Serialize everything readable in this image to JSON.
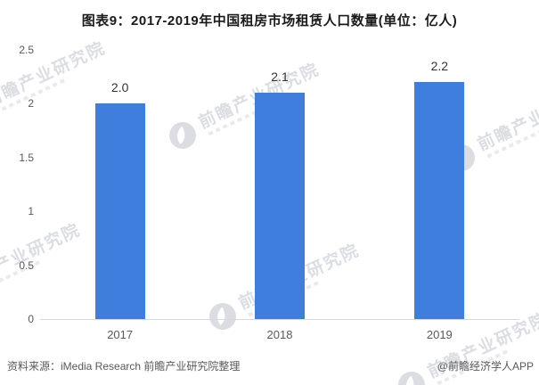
{
  "title": "图表9：2017-2019年中国租房市场租赁人口数量(单位：亿人)",
  "chart_data": {
    "type": "bar",
    "title": "图表9：2017-2019年中国租房市场租赁人口数量",
    "unit": "亿人",
    "categories": [
      "2017",
      "2018",
      "2019"
    ],
    "values": [
      2.0,
      2.1,
      2.2
    ],
    "value_labels": [
      "2.0",
      "2.1",
      "2.2"
    ],
    "xlabel": "",
    "ylabel": "",
    "ylim": [
      0,
      2.5
    ],
    "ytick_values": [
      0,
      0.5,
      1,
      1.5,
      2,
      2.5
    ],
    "ytick_labels": [
      "0",
      "0.5",
      "1",
      "1.5",
      "2",
      "2.5"
    ],
    "grid": false,
    "legend": false,
    "bar_color": "#3f7edd"
  },
  "footer": {
    "source": "资料来源：iMedia Research 前瞻产业研究院整理",
    "credit": "@前瞻经济学人APP"
  },
  "watermark": {
    "text": "前瞻产业研究院",
    "color": "#b9bdc6"
  },
  "colors": {
    "bar": "#3f7edd",
    "axis_line": "#d9d9d9",
    "title_text": "#1a1a1a",
    "axis_text": "#595959",
    "value_text": "#333333",
    "watermark": "#b9bdc6"
  }
}
